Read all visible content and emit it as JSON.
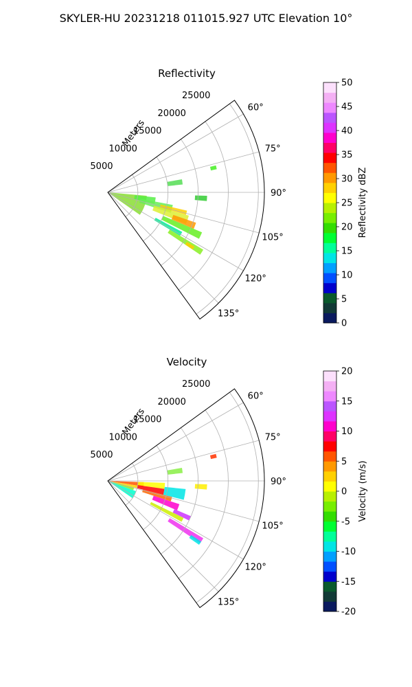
{
  "figure": {
    "title": "SKYLER-HU  20231218  011015.927 UTC Elevation 10°"
  },
  "chart_data": [
    {
      "type": "polar-sector",
      "title": "Reflectivity",
      "radial_label": "Meters",
      "radial_ticks": [
        5000,
        10000,
        15000,
        20000,
        25000
      ],
      "rlim": [
        0,
        26000
      ],
      "theta_range_deg": [
        54,
        144
      ],
      "theta_ticks": [
        "60°",
        "75°",
        "90°",
        "105°",
        "120°",
        "135°"
      ],
      "theta_tick_values": [
        60,
        75,
        90,
        105,
        120,
        135
      ],
      "grid": true,
      "colorbar": {
        "label": "Reflectivity dBZ",
        "range": [
          0,
          50
        ],
        "ticks": [
          0,
          5,
          10,
          15,
          20,
          25,
          30,
          35,
          40,
          45,
          50
        ],
        "colors": [
          "#0a1a5e",
          "#123a36",
          "#0a5a2c",
          "#0000cc",
          "#0050ff",
          "#00a0ff",
          "#00e5e5",
          "#00ff99",
          "#00ff33",
          "#33dd00",
          "#77ee00",
          "#b8f000",
          "#ffff00",
          "#ffd000",
          "#ff9900",
          "#ff5500",
          "#ff0000",
          "#ff0066",
          "#ff00cc",
          "#dd33ff",
          "#bb55ff",
          "#ee88ff",
          "#f4b0f4",
          "#fce0fc"
        ]
      },
      "echoes": [
        {
          "az": [
            95,
            125
          ],
          "r": [
            0,
            6500
          ],
          "color": "#88dd33"
        },
        {
          "az": [
            96,
            104
          ],
          "r": [
            4500,
            8000
          ],
          "color": "#55ee44"
        },
        {
          "az": [
            101,
            108
          ],
          "r": [
            5500,
            11000
          ],
          "color": "#66ee55"
        },
        {
          "az": [
            103,
            106
          ],
          "r": [
            9000,
            13500
          ],
          "color": "#ffd000"
        },
        {
          "az": [
            106,
            112
          ],
          "r": [
            8000,
            14000
          ],
          "color": "#ddee33"
        },
        {
          "az": [
            109,
            113
          ],
          "r": [
            11500,
            15500
          ],
          "color": "#ff9900"
        },
        {
          "az": [
            113,
            117
          ],
          "r": [
            10000,
            17000
          ],
          "color": "#66ee22"
        },
        {
          "az": [
            118,
            121
          ],
          "r": [
            9000,
            14000
          ],
          "color": "#00ee99"
        },
        {
          "az": [
            121,
            124
          ],
          "r": [
            12000,
            18500
          ],
          "color": "#88ee22"
        },
        {
          "az": [
            122,
            124
          ],
          "r": [
            15500,
            17000
          ],
          "color": "#ffcc00"
        },
        {
          "az": [
            80,
            84
          ],
          "r": [
            10000,
            12500
          ],
          "color": "#55dd55"
        },
        {
          "az": [
            92,
            95
          ],
          "r": [
            14500,
            16500
          ],
          "color": "#33cc33"
        },
        {
          "az": [
            76,
            78
          ],
          "r": [
            17500,
            18500
          ],
          "color": "#44ee22"
        }
      ]
    },
    {
      "type": "polar-sector",
      "title": "Velocity",
      "radial_label": "Meters",
      "radial_ticks": [
        5000,
        10000,
        15000,
        20000,
        25000
      ],
      "rlim": [
        0,
        26000
      ],
      "theta_range_deg": [
        54,
        144
      ],
      "theta_ticks": [
        "60°",
        "75°",
        "90°",
        "105°",
        "120°",
        "135°"
      ],
      "theta_tick_values": [
        60,
        75,
        90,
        105,
        120,
        135
      ],
      "grid": true,
      "colorbar": {
        "label": "Velocity (m/s)",
        "range": [
          -20,
          20
        ],
        "ticks": [
          -20,
          -15,
          -10,
          -5,
          0,
          5,
          10,
          15,
          20
        ],
        "colors": [
          "#0a1a5e",
          "#123a36",
          "#0a5a2c",
          "#0000cc",
          "#0050ff",
          "#00a0ff",
          "#00e5e5",
          "#00ff99",
          "#00ff33",
          "#33dd00",
          "#77ee00",
          "#b8f000",
          "#ffff00",
          "#ffd000",
          "#ff9900",
          "#ff5500",
          "#ff0000",
          "#ff0066",
          "#ff00cc",
          "#dd33ff",
          "#bb55ff",
          "#ee88ff",
          "#f4b0f4",
          "#fce0fc"
        ]
      },
      "echoes": [
        {
          "az": [
            92,
            99
          ],
          "r": [
            0,
            6000
          ],
          "color": "#ff5500"
        },
        {
          "az": [
            99,
            104
          ],
          "r": [
            0,
            5000
          ],
          "color": "#ffd000"
        },
        {
          "az": [
            104,
            110
          ],
          "r": [
            0,
            4500
          ],
          "color": "#88ee22"
        },
        {
          "az": [
            110,
            125
          ],
          "r": [
            0,
            5000
          ],
          "color": "#00ffcc"
        },
        {
          "az": [
            92,
            98
          ],
          "r": [
            5000,
            9500
          ],
          "color": "#ffff00"
        },
        {
          "az": [
            98,
            104
          ],
          "r": [
            5000,
            9500
          ],
          "color": "#ff0000"
        },
        {
          "az": [
            104,
            108
          ],
          "r": [
            6000,
            11000
          ],
          "color": "#ff6600"
        },
        {
          "az": [
            108,
            113
          ],
          "r": [
            8000,
            12500
          ],
          "color": "#ff00cc"
        },
        {
          "az": [
            113,
            116
          ],
          "r": [
            12000,
            15000
          ],
          "color": "#cc33ff"
        },
        {
          "az": [
            96,
            104
          ],
          "r": [
            9500,
            13000
          ],
          "color": "#00e5e5"
        },
        {
          "az": [
            116,
            119
          ],
          "r": [
            8000,
            14000
          ],
          "color": "#ccee00"
        },
        {
          "az": [
            121,
            124
          ],
          "r": [
            12000,
            18500
          ],
          "color": "#ee33ee"
        },
        {
          "az": [
            123,
            125
          ],
          "r": [
            16500,
            18500
          ],
          "color": "#00e5e5"
        },
        {
          "az": [
            80,
            84
          ],
          "r": [
            10000,
            12500
          ],
          "color": "#88ee44"
        },
        {
          "az": [
            92,
            95
          ],
          "r": [
            14500,
            16500
          ],
          "color": "#ffee00"
        },
        {
          "az": [
            76,
            78
          ],
          "r": [
            17500,
            18500
          ],
          "color": "#ff3300"
        }
      ]
    }
  ]
}
